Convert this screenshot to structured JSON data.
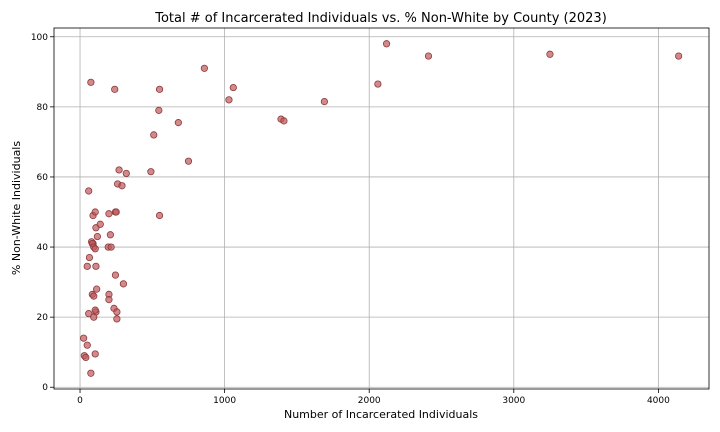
{
  "chart_data": {
    "type": "scatter",
    "title": "Total # of Incarcerated Individuals vs. % Non-White by County (2023)",
    "xlabel": "Number of Incarcerated Individuals",
    "ylabel": "% Non-White Individuals",
    "xlim": [
      -180,
      4350
    ],
    "ylim": [
      -0.5,
      102.5
    ],
    "xticks": [
      0,
      1000,
      2000,
      3000,
      4000
    ],
    "yticks": [
      0,
      20,
      40,
      60,
      80,
      100
    ],
    "grid": true,
    "colors": {
      "fill": "#c0575b",
      "edge": "#8b3a3a"
    },
    "x": [
      2120,
      2410,
      3250,
      4140,
      2060,
      860,
      1060,
      1030,
      1690,
      1390,
      1410,
      680,
      750,
      550,
      545,
      510,
      490,
      270,
      260,
      290,
      320,
      75,
      240,
      245,
      250,
      200,
      550,
      60,
      90,
      105,
      110,
      140,
      120,
      65,
      210,
      195,
      215,
      80,
      90,
      85,
      95,
      105,
      110,
      50,
      245,
      300,
      115,
      85,
      95,
      200,
      200,
      235,
      255,
      255,
      110,
      60,
      105,
      95,
      25,
      50,
      30,
      40,
      105,
      75
    ],
    "y": [
      98,
      94.5,
      95,
      94.5,
      86.5,
      91,
      85.5,
      82,
      81.5,
      76.5,
      76,
      75.5,
      64.5,
      85,
      79,
      72,
      61.5,
      62,
      58,
      57.5,
      61,
      87,
      85,
      50,
      50,
      49.5,
      49,
      56,
      49,
      50,
      45.5,
      46.5,
      43,
      37,
      43.5,
      40,
      40,
      41.5,
      41,
      41,
      40,
      39.5,
      34.5,
      34.5,
      32,
      29.5,
      28,
      26.5,
      26,
      26.5,
      25,
      22.5,
      21.5,
      19.5,
      21.5,
      21,
      22,
      20,
      14,
      12,
      9,
      8.5,
      9.5,
      4
    ]
  }
}
